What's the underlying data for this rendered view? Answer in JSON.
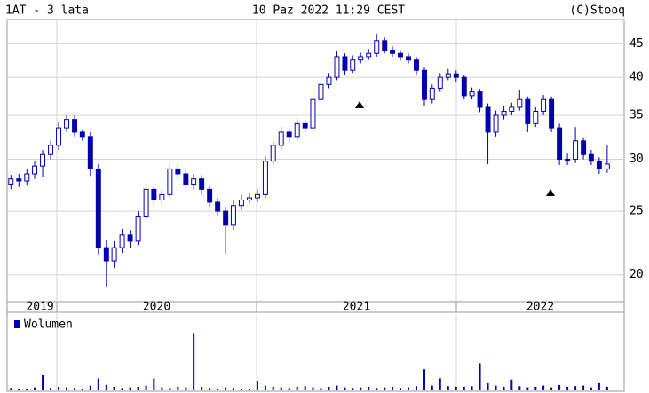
{
  "chart_data": {
    "type": "candlestick",
    "title": "1AT - 3 lata",
    "date": "10 Paz 2022 11:29 CEST",
    "source": "(C)Stooq",
    "log_scale": true,
    "grid": true,
    "color": "#0000b0",
    "up_color": "#ffffff",
    "down_color": "#0000b0",
    "xlim": [
      2019.751,
      2022.84
    ],
    "xticks": [
      2020,
      2021,
      2022
    ],
    "xlabels": [
      {
        "value": 2019.916,
        "label": "2019"
      },
      {
        "value": 2020.5,
        "label": "2020"
      },
      {
        "value": 2021.5,
        "label": "2021"
      },
      {
        "value": 2022.42,
        "label": "2022"
      }
    ],
    "ylim": [
      18.2,
      49
    ],
    "yticks": [
      20,
      25,
      30,
      35,
      40,
      45
    ],
    "x": [
      2019.77,
      2019.81,
      2019.85,
      2019.889,
      2019.929,
      2019.969,
      2020.009,
      2020.049,
      2020.089,
      2020.128,
      2020.168,
      2020.208,
      2020.248,
      2020.287,
      2020.327,
      2020.367,
      2020.407,
      2020.447,
      2020.486,
      2020.526,
      2020.566,
      2020.606,
      2020.646,
      2020.685,
      2020.725,
      2020.765,
      2020.805,
      2020.845,
      2020.884,
      2020.924,
      2020.964,
      2021.004,
      2021.044,
      2021.083,
      2021.123,
      2021.163,
      2021.203,
      2021.243,
      2021.282,
      2021.322,
      2021.362,
      2021.402,
      2021.442,
      2021.481,
      2021.521,
      2021.561,
      2021.601,
      2021.641,
      2021.68,
      2021.72,
      2021.76,
      2021.8,
      2021.84,
      2021.879,
      2021.919,
      2021.959,
      2021.999,
      2022.039,
      2022.078,
      2022.118,
      2022.158,
      2022.198,
      2022.238,
      2022.277,
      2022.317,
      2022.357,
      2022.397,
      2022.436,
      2022.476,
      2022.516,
      2022.556,
      2022.596,
      2022.636,
      2022.675,
      2022.715,
      2022.755
    ],
    "open": [
      27.5,
      28,
      27.8,
      28.5,
      29.3,
      30.5,
      31.5,
      33.5,
      34.5,
      33,
      32.5,
      29,
      22,
      21,
      22,
      23,
      22.5,
      24.5,
      27,
      26,
      26.5,
      29,
      28.5,
      27.5,
      28,
      27,
      25.8,
      25,
      23.8,
      25.5,
      26,
      26.2,
      26.5,
      29.8,
      31.5,
      33,
      32.5,
      34,
      33.5,
      37,
      39,
      40,
      43,
      41,
      42.5,
      43,
      43.5,
      45.5,
      44,
      43.5,
      43,
      42.5,
      41,
      37,
      38.5,
      40,
      40.5,
      40,
      37.5,
      38,
      36,
      33,
      35,
      35.5,
      36,
      37,
      34,
      35.5,
      37,
      33.5,
      30,
      30,
      32,
      30.5,
      29.8,
      29
    ],
    "high": [
      28.4,
      28.5,
      29.0,
      29.8,
      31.0,
      32.0,
      34.2,
      35.0,
      35.0,
      33.3,
      33.0,
      29.5,
      22.6,
      22.5,
      23.5,
      23.4,
      25.0,
      27.5,
      27.4,
      27.0,
      29.6,
      29.5,
      29.0,
      28.5,
      28.4,
      27.3,
      26.2,
      25.4,
      26.0,
      26.5,
      26.6,
      27.0,
      30.3,
      32.0,
      33.6,
      33.4,
      34.6,
      34.5,
      37.6,
      39.6,
      40.6,
      43.8,
      43.5,
      43.2,
      43.6,
      44.2,
      46.6,
      46.0,
      44.6,
      44.0,
      43.5,
      43.0,
      41.5,
      39.0,
      40.6,
      41.2,
      41.0,
      40.4,
      38.6,
      38.4,
      36.5,
      35.6,
      36.2,
      36.6,
      38.2,
      37.4,
      36.0,
      37.6,
      37.4,
      34.0,
      30.6,
      33.6,
      32.4,
      31.0,
      30.2,
      31.5
    ],
    "low": [
      27.0,
      27.2,
      27.4,
      28.0,
      28.2,
      30.0,
      31.0,
      33.0,
      32.5,
      32.0,
      28.3,
      21.5,
      19.2,
      20.5,
      21.6,
      22.0,
      22.2,
      24.2,
      25.5,
      25.6,
      26.2,
      28.0,
      27.0,
      27.0,
      26.5,
      25.4,
      24.6,
      21.5,
      23.4,
      25.1,
      25.7,
      25.8,
      26.2,
      29.4,
      31.0,
      31.8,
      32.0,
      33.0,
      33.2,
      36.6,
      38.5,
      39.6,
      40.3,
      40.6,
      42.0,
      42.5,
      43.0,
      43.5,
      43.0,
      42.4,
      42.0,
      40.4,
      36.2,
      36.5,
      38.0,
      39.6,
      39.4,
      37.0,
      37.0,
      35.4,
      29.5,
      32.5,
      34.5,
      35.0,
      35.6,
      33.0,
      33.6,
      35.0,
      33.0,
      29.4,
      29.4,
      29.6,
      30.0,
      29.4,
      28.5,
      28.6
    ],
    "close": [
      28,
      27.8,
      28.5,
      29.3,
      30.5,
      31.5,
      33.5,
      34.5,
      33,
      32.5,
      29,
      22,
      21,
      22,
      23,
      22.5,
      24.5,
      27,
      26,
      26.5,
      29,
      28.5,
      27.5,
      28,
      27,
      25.8,
      25,
      23.8,
      25.5,
      26,
      26.2,
      26.5,
      29.8,
      31.5,
      33,
      32.5,
      34,
      33.5,
      37,
      39,
      40,
      43,
      41,
      42.5,
      43,
      43.5,
      45.5,
      44,
      43.5,
      43,
      42.5,
      41,
      37,
      38.5,
      40,
      40.5,
      40,
      37.5,
      38,
      36,
      33,
      35,
      35.5,
      36,
      37,
      34,
      35.5,
      37,
      33.5,
      30,
      30,
      32,
      30.5,
      29.8,
      29,
      29.5
    ],
    "volume": {
      "name": "Wolumen",
      "color": "#0000b0",
      "ylim": [
        0,
        100
      ],
      "values": [
        4,
        3,
        3,
        5,
        25,
        4,
        6,
        5,
        4,
        3,
        8,
        20,
        9,
        6,
        4,
        5,
        6,
        8,
        20,
        5,
        4,
        6,
        5,
        95,
        6,
        4,
        3,
        5,
        4,
        3,
        3,
        15,
        8,
        6,
        5,
        4,
        6,
        7,
        5,
        4,
        6,
        8,
        5,
        4,
        5,
        6,
        4,
        5,
        6,
        4,
        5,
        7,
        35,
        8,
        20,
        7,
        6,
        6,
        7,
        45,
        12,
        8,
        6,
        18,
        7,
        5,
        6,
        8,
        5,
        9,
        6,
        7,
        8,
        5,
        12,
        6
      ]
    }
  }
}
